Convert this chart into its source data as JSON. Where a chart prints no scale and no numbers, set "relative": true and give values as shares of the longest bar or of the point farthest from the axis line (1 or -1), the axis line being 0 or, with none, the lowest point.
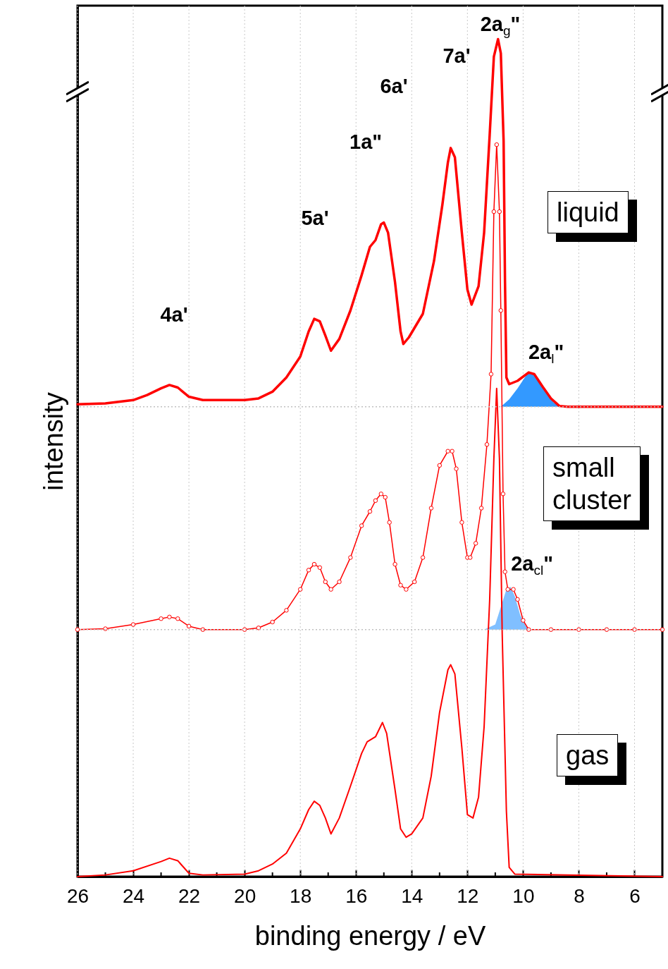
{
  "chart_data": {
    "type": "line",
    "xlabel": "binding energy / eV",
    "ylabel": "intensity",
    "relative": true,
    "tick_labels": "x",
    "grid": "x",
    "marker": "none",
    "xlim": [
      26,
      5
    ],
    "xticks": [
      26,
      {
        "value": 25,
        "label": null
      },
      24,
      {
        "value": 23,
        "label": null
      },
      22,
      {
        "value": 21,
        "label": null
      },
      20,
      {
        "value": 19,
        "label": null
      },
      18,
      {
        "value": 17,
        "label": null
      },
      16,
      {
        "value": 15,
        "label": null
      },
      14,
      {
        "value": 13,
        "label": null
      },
      12,
      {
        "value": 11,
        "label": null
      },
      10,
      {
        "value": 9,
        "label": null
      },
      8,
      {
        "value": 7,
        "label": null
      },
      6,
      {
        "value": 5,
        "label": null
      }
    ],
    "series": [
      {
        "type": "area",
        "color": "#3399ff",
        "x": [
          10.8,
          10.5,
          10.2,
          9.9,
          9.75,
          9.5,
          9.2,
          8.9,
          8.6
        ],
        "values": [
          0.561,
          0.57,
          0.583,
          0.598,
          0.603,
          0.596,
          0.579,
          0.566,
          0.561
        ]
      },
      {
        "type": "area",
        "color": "#80bfff",
        "x": [
          11.4,
          11.0,
          10.8,
          10.6,
          10.45,
          10.3,
          10.1,
          9.9,
          9.7
        ],
        "values": [
          0.295,
          0.301,
          0.322,
          0.343,
          0.346,
          0.335,
          0.312,
          0.299,
          0.295
        ]
      },
      {
        "name": "liquid",
        "color": "#ff0000",
        "x": [
          26,
          25,
          24,
          23.5,
          23,
          22.7,
          22.4,
          22,
          21.5,
          20,
          19.5,
          19,
          18.5,
          18,
          17.7,
          17.5,
          17.3,
          17.1,
          16.9,
          16.6,
          16.2,
          15.8,
          15.5,
          15.3,
          15.1,
          15.0,
          14.85,
          14.6,
          14.4,
          14.3,
          14.1,
          13.6,
          13.2,
          12.9,
          12.7,
          12.6,
          12.45,
          12.2,
          12.0,
          11.85,
          11.6,
          11.4,
          11.2,
          11.05,
          10.9,
          10.8,
          10.7,
          10.65,
          10.6,
          10.5,
          10.2,
          9.8,
          9.6,
          9.3,
          9.0,
          8.7,
          8.4,
          6,
          5
        ],
        "values": [
          0.564,
          0.565,
          0.569,
          0.575,
          0.583,
          0.587,
          0.584,
          0.573,
          0.569,
          0.569,
          0.571,
          0.579,
          0.596,
          0.621,
          0.651,
          0.666,
          0.663,
          0.646,
          0.628,
          0.642,
          0.676,
          0.718,
          0.752,
          0.76,
          0.779,
          0.781,
          0.769,
          0.71,
          0.651,
          0.636,
          0.644,
          0.672,
          0.735,
          0.802,
          0.853,
          0.87,
          0.859,
          0.769,
          0.701,
          0.683,
          0.705,
          0.769,
          0.886,
          0.979,
          1.0,
          0.983,
          0.878,
          0.71,
          0.596,
          0.588,
          0.592,
          0.602,
          0.6,
          0.585,
          0.571,
          0.562,
          0.561,
          0.561,
          0.561
        ]
      },
      {
        "name": "small cluster",
        "marker": "circle",
        "color": "#ff0000",
        "x": [
          26,
          25,
          24,
          23,
          22.7,
          22.4,
          22,
          21.5,
          20,
          19.5,
          19,
          18.5,
          18,
          17.7,
          17.5,
          17.3,
          17.1,
          16.9,
          16.6,
          16.2,
          15.8,
          15.5,
          15.3,
          15.1,
          14.95,
          14.8,
          14.6,
          14.4,
          14.2,
          13.9,
          13.6,
          13.3,
          13.0,
          12.7,
          12.55,
          12.4,
          12.2,
          12.0,
          11.9,
          11.7,
          11.5,
          11.3,
          11.15,
          11.05,
          10.95,
          10.85,
          10.8,
          10.72,
          10.65,
          10.55,
          10.35,
          10.2,
          10.0,
          9.8,
          9.0,
          8.0,
          7.0,
          6.0,
          5.0
        ],
        "values": [
          0.295,
          0.296,
          0.301,
          0.308,
          0.31,
          0.308,
          0.299,
          0.295,
          0.295,
          0.297,
          0.304,
          0.318,
          0.343,
          0.366,
          0.373,
          0.369,
          0.352,
          0.343,
          0.352,
          0.381,
          0.419,
          0.436,
          0.449,
          0.457,
          0.453,
          0.423,
          0.373,
          0.348,
          0.343,
          0.352,
          0.381,
          0.44,
          0.491,
          0.508,
          0.508,
          0.487,
          0.423,
          0.381,
          0.381,
          0.398,
          0.44,
          0.516,
          0.6,
          0.794,
          0.874,
          0.794,
          0.676,
          0.457,
          0.364,
          0.343,
          0.343,
          0.331,
          0.306,
          0.295,
          0.295,
          0.295,
          0.295,
          0.295,
          0.295
        ]
      },
      {
        "name": "gas",
        "color": "#ff0000",
        "x": [
          26,
          25,
          24,
          23,
          22.7,
          22.4,
          22,
          21.5,
          20,
          19.5,
          19,
          18.5,
          18,
          17.7,
          17.5,
          17.3,
          17.1,
          16.9,
          16.6,
          16.2,
          15.8,
          15.6,
          15.3,
          15.05,
          14.9,
          14.6,
          14.4,
          14.2,
          14.0,
          13.6,
          13.3,
          13.0,
          12.7,
          12.6,
          12.45,
          12.2,
          12.0,
          11.8,
          11.6,
          11.4,
          11.2,
          11.05,
          10.95,
          10.85,
          10.75,
          10.6,
          10.5,
          10.3,
          5
        ],
        "values": [
          0,
          0.002,
          0.007,
          0.018,
          0.022,
          0.019,
          0.004,
          0.002,
          0.003,
          0.007,
          0.015,
          0.028,
          0.057,
          0.08,
          0.09,
          0.085,
          0.07,
          0.051,
          0.07,
          0.108,
          0.147,
          0.161,
          0.167,
          0.184,
          0.171,
          0.104,
          0.057,
          0.047,
          0.051,
          0.07,
          0.12,
          0.196,
          0.247,
          0.253,
          0.242,
          0.154,
          0.074,
          0.07,
          0.095,
          0.179,
          0.331,
          0.499,
          0.583,
          0.499,
          0.289,
          0.078,
          0.011,
          0.003,
          0
        ]
      }
    ],
    "ref_lines": [
      {
        "axis": "y",
        "value": 0.561,
        "color": "#c0c0c0",
        "line_style": "dotted"
      },
      {
        "axis": "y",
        "value": 0.295,
        "color": "#c0c0c0",
        "line_style": "dotted"
      }
    ],
    "annotations": [
      "4a'",
      "5a'",
      "1a\"",
      "6a'",
      "7a'",
      "2a$_{g}$\"",
      "2a$_{l}$\"",
      "2a$_{cl}$\""
    ]
  }
}
